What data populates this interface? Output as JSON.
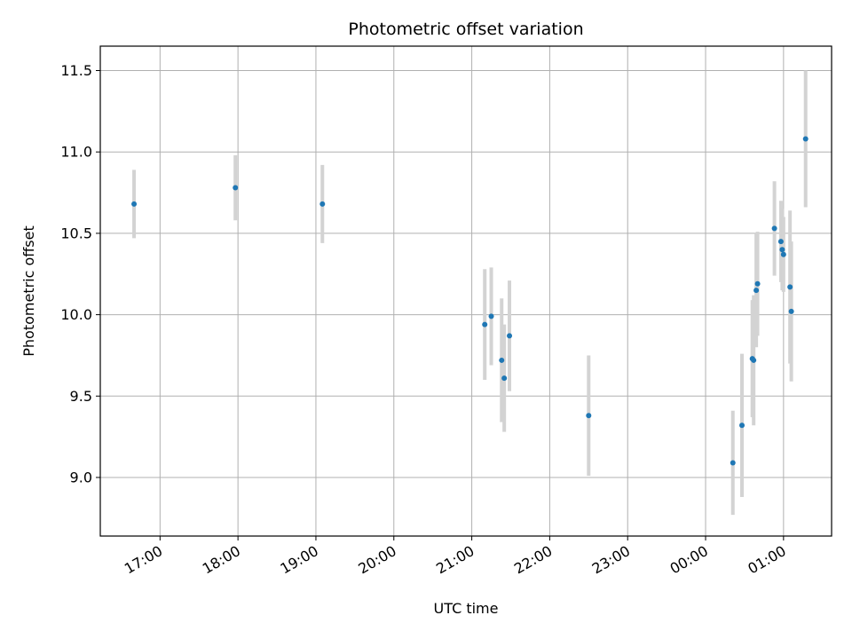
{
  "chart_data": {
    "type": "scatter",
    "title": "Photometric offset variation",
    "xlabel": "UTC time",
    "ylabel": "Photometric offset",
    "grid": true,
    "x_ticks": [
      "17:00",
      "18:00",
      "19:00",
      "20:00",
      "21:00",
      "22:00",
      "23:00",
      "00:00",
      "01:00"
    ],
    "y_ticks": [
      "9.0",
      "9.5",
      "10.0",
      "10.5",
      "11.0",
      "11.5"
    ],
    "xlim": [
      "16:14",
      "01:37"
    ],
    "ylim": [
      8.64,
      11.65
    ],
    "marker_color": "#1f77b4",
    "errorbar_color": "#d3d3d3",
    "series": [
      {
        "points": [
          {
            "x": "16:40",
            "y": 10.68,
            "err": 0.21
          },
          {
            "x": "17:58",
            "y": 10.78,
            "err": 0.2
          },
          {
            "x": "19:05",
            "y": 10.68,
            "err": 0.24
          },
          {
            "x": "21:10",
            "y": 9.94,
            "err": 0.34
          },
          {
            "x": "21:15",
            "y": 9.99,
            "err": 0.3
          },
          {
            "x": "21:23",
            "y": 9.72,
            "err": 0.38
          },
          {
            "x": "21:25",
            "y": 9.61,
            "err": 0.33
          },
          {
            "x": "21:29",
            "y": 9.87,
            "err": 0.34
          },
          {
            "x": "22:30",
            "y": 9.38,
            "err": 0.37
          },
          {
            "x": "00:21",
            "y": 9.09,
            "err": 0.32
          },
          {
            "x": "00:28",
            "y": 9.32,
            "err": 0.44
          },
          {
            "x": "00:36",
            "y": 9.73,
            "err": 0.36
          },
          {
            "x": "00:37",
            "y": 9.72,
            "err": 0.4
          },
          {
            "x": "00:39",
            "y": 10.15,
            "err": 0.35
          },
          {
            "x": "00:40",
            "y": 10.19,
            "err": 0.32
          },
          {
            "x": "00:53",
            "y": 10.53,
            "err": 0.29
          },
          {
            "x": "00:58",
            "y": 10.45,
            "err": 0.25
          },
          {
            "x": "00:59",
            "y": 10.4,
            "err": 0.25
          },
          {
            "x": "01:00",
            "y": 10.37,
            "err": 0.23
          },
          {
            "x": "01:05",
            "y": 10.17,
            "err": 0.47
          },
          {
            "x": "01:06",
            "y": 10.02,
            "err": 0.43
          },
          {
            "x": "01:17",
            "y": 11.08,
            "err": 0.42
          }
        ]
      }
    ]
  }
}
